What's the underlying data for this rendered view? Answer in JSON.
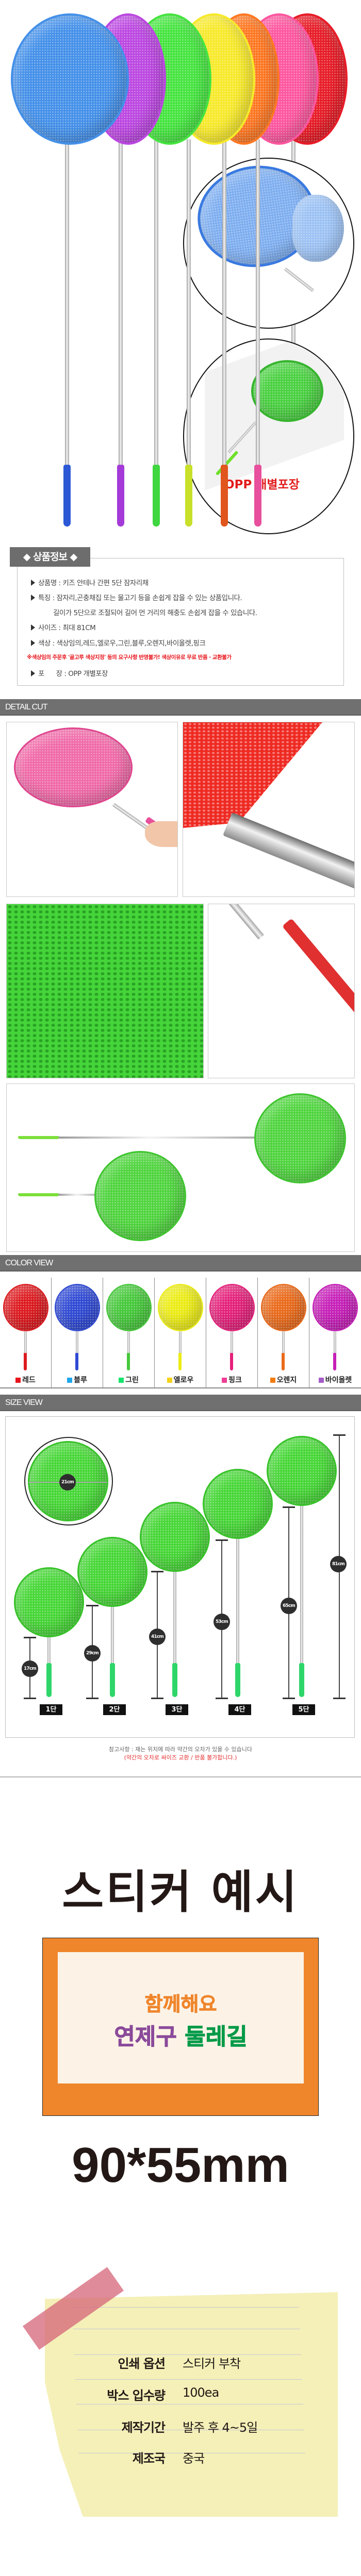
{
  "hero": {
    "badge": "OPP 개별포장",
    "nets": [
      {
        "color": "#d9202a",
        "grip": "#e01a20"
      },
      {
        "color": "#f25a9c",
        "grip": "#e84f9c"
      },
      {
        "color": "#f57a2c",
        "grip": "#e0561c"
      },
      {
        "color": "#f5e83a",
        "grip": "#c8e02a"
      },
      {
        "color": "#4fe04a",
        "grip": "#3fd640"
      },
      {
        "color": "#b44ad6",
        "grip": "#a43ad8"
      },
      {
        "color": "#4a8fe0",
        "grip": "#2c58d6"
      }
    ]
  },
  "info": {
    "title": "◆ 상품정보 ◆",
    "name": "상품명 : 키즈 안테나 간편 5단 잠자리채",
    "feature": "특징 :  잠자리,곤충채집 또는 물고기 등을 손쉽게 잡을 수 있는 상품입니다.",
    "feature_cont": "길이가 5단으로 조절되어 길어 먼 거리의 해충도 손쉽게 잡을 수  있습니다.",
    "size": "사이즈 : 최대 81CM",
    "color": "색상 :  색상임의,레드,엘로우,그린,블루,오렌지,바이올렛,핑크",
    "warning": "※색상임의 주문후 '골고루 색상지정' 등의 요구사항 반영불가! 색상이유로 무료 반품 · 교환불가",
    "packing": "포      장 : OPP 개별포장"
  },
  "sections": {
    "detail": "DETAIL CUT",
    "color": "COLOR VIEW",
    "size": "SIZE VIEW"
  },
  "colors": [
    {
      "name": "레드",
      "swatch": "#e8141b",
      "net": "#dd1a1f"
    },
    {
      "name": "블루",
      "swatch": "#1ea8ec",
      "net": "#2f49d4"
    },
    {
      "name": "그린",
      "swatch": "#14e46a",
      "net": "#45c83a"
    },
    {
      "name": "엘로우",
      "swatch": "#f5d31a",
      "net": "#ecec14"
    },
    {
      "name": "핑크",
      "swatch": "#ee3d96",
      "net": "#e4207a"
    },
    {
      "name": "오렌지",
      "swatch": "#f47b0f",
      "net": "#ea6a1a"
    },
    {
      "name": "바이올렛",
      "swatch": "#a35cc7",
      "net": "#c61fb8"
    }
  ],
  "size": {
    "diameter": "21cm",
    "stages": [
      {
        "label": "1단",
        "length": "17cm"
      },
      {
        "label": "2단",
        "length": "29cm"
      },
      {
        "label": "3단",
        "length": "41cm"
      },
      {
        "label": "4단",
        "length": "53cm"
      },
      {
        "label": "5단",
        "length": "65cm"
      }
    ],
    "max_length": "81cm",
    "note": "참고사항 : 재는 위치에 따라 약간의 오차가 있을 수 있습니다",
    "note_red": "(약간의 오차로 싸이즈 교환 / 반품 불가합니다.)"
  },
  "sticker": {
    "title": "스티커 예시",
    "line1": "함께해요",
    "line2a": "연제구",
    "line2b": "둘레길",
    "dimensions": "90*55mm",
    "colors": {
      "frame": "#ef862c",
      "inner": "#fcf3e6",
      "orange": "#ef862c",
      "purple": "#8a4a9a",
      "green": "#039a48",
      "note": "#f4f0b8",
      "tape": "#d9727f"
    },
    "specs": [
      {
        "label": "인쇄 옵션",
        "value": "스티커 부착"
      },
      {
        "label": "박스 입수량",
        "value": "100ea"
      },
      {
        "label": "제작기간",
        "value": "발주 후 4~5일"
      },
      {
        "label": "제조국",
        "value": "중국"
      }
    ]
  }
}
